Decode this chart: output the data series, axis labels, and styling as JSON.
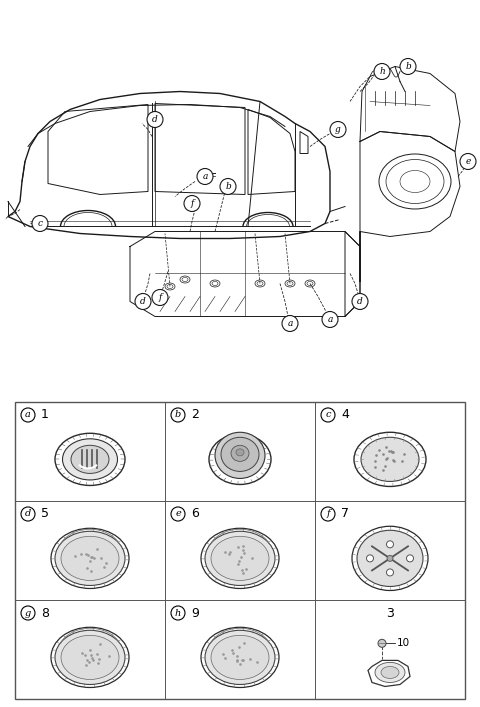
{
  "bg_color": "#ffffff",
  "line_color": "#1a1a1a",
  "fig_width": 4.8,
  "fig_height": 7.07,
  "dpi": 100,
  "cells": [
    {
      "row": 0,
      "col": 0,
      "label": "a",
      "number": "1"
    },
    {
      "row": 0,
      "col": 1,
      "label": "b",
      "number": "2"
    },
    {
      "row": 0,
      "col": 2,
      "label": "c",
      "number": "4"
    },
    {
      "row": 1,
      "col": 0,
      "label": "d",
      "number": "5"
    },
    {
      "row": 1,
      "col": 1,
      "label": "e",
      "number": "6"
    },
    {
      "row": 1,
      "col": 2,
      "label": "f",
      "number": "7"
    },
    {
      "row": 2,
      "col": 0,
      "label": "g",
      "number": "8"
    },
    {
      "row": 2,
      "col": 1,
      "label": "h",
      "number": "9"
    },
    {
      "row": 2,
      "col": 2,
      "label": "",
      "number": "3"
    }
  ]
}
